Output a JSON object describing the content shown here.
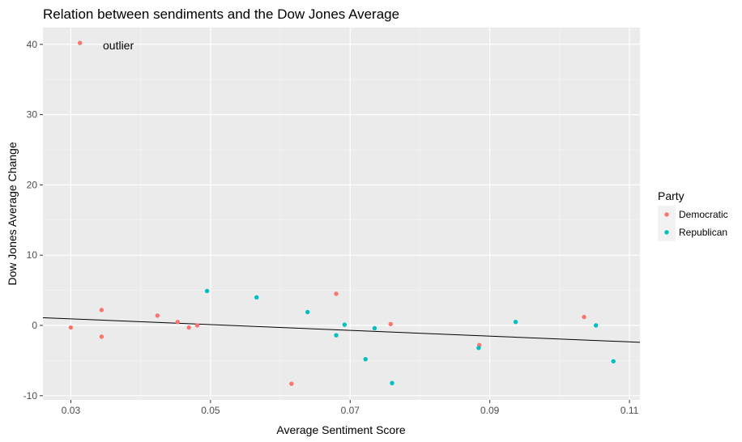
{
  "chart_data": {
    "type": "scatter",
    "title": "Relation between sendiments and the Dow Jones Average",
    "xlabel": "Average Sentiment Score",
    "ylabel": "Dow Jones Average Change",
    "xlim": [
      0.026,
      0.1115
    ],
    "ylim": [
      -10.6,
      42.4
    ],
    "x_ticks": [
      0.03,
      0.05,
      0.07,
      0.09,
      0.11
    ],
    "x_tick_labels": [
      "0.03",
      "0.05",
      "0.07",
      "0.09",
      "0.11"
    ],
    "y_ticks": [
      -10,
      0,
      10,
      20,
      30,
      40
    ],
    "y_tick_labels": [
      "-10",
      "0",
      "10",
      "20",
      "30",
      "40"
    ],
    "grid": true,
    "legend": {
      "title": "Party",
      "position": "right"
    },
    "series": [
      {
        "name": "Democratic",
        "color": "#F8766D",
        "points": [
          [
            0.0313,
            40.2
          ],
          [
            0.03,
            -0.3
          ],
          [
            0.0344,
            2.2
          ],
          [
            0.0344,
            -1.6
          ],
          [
            0.0424,
            1.4
          ],
          [
            0.0453,
            0.5
          ],
          [
            0.0469,
            -0.3
          ],
          [
            0.0481,
            0.0
          ],
          [
            0.0616,
            -8.3
          ],
          [
            0.068,
            4.5
          ],
          [
            0.0758,
            0.2
          ],
          [
            0.0885,
            -2.8
          ],
          [
            0.1035,
            1.2
          ]
        ]
      },
      {
        "name": "Republican",
        "color": "#00BFC4",
        "points": [
          [
            0.0495,
            4.9
          ],
          [
            0.0566,
            4.0
          ],
          [
            0.0639,
            1.9
          ],
          [
            0.068,
            -1.4
          ],
          [
            0.0692,
            0.1
          ],
          [
            0.0722,
            -4.8
          ],
          [
            0.0735,
            -0.4
          ],
          [
            0.076,
            -8.2
          ],
          [
            0.0884,
            -3.2
          ],
          [
            0.0937,
            0.5
          ],
          [
            0.1052,
            0.0
          ],
          [
            0.1077,
            -5.1
          ]
        ]
      }
    ],
    "trend_line": {
      "x": [
        0.026,
        0.1115
      ],
      "y": [
        1.1,
        -2.4
      ],
      "color": "#000000"
    },
    "annotations": [
      {
        "text": "outlier",
        "x": 0.035,
        "y": 39.7
      }
    ]
  }
}
